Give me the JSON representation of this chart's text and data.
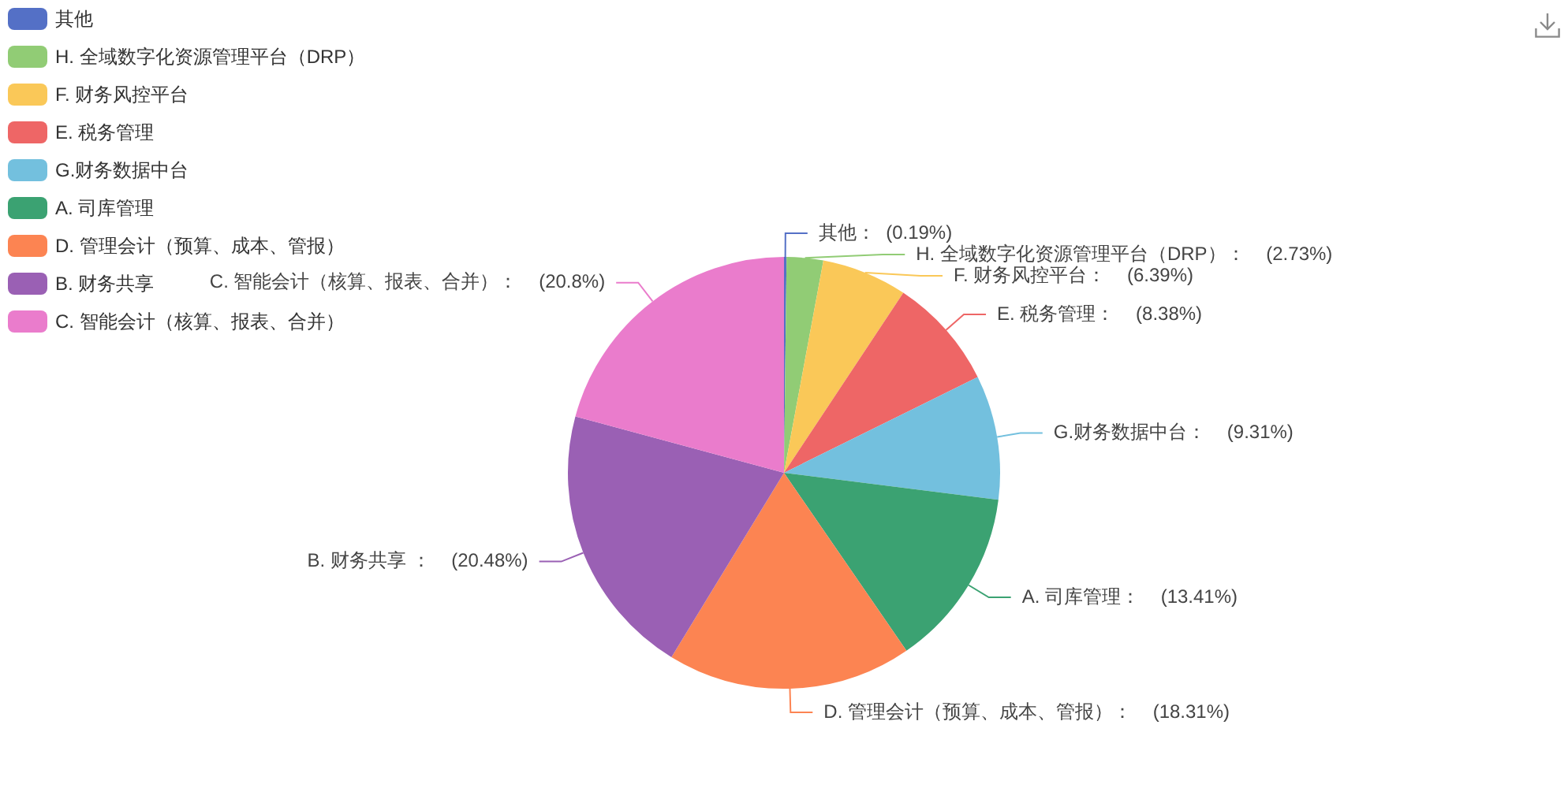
{
  "chart_data": {
    "type": "pie",
    "categories": [
      "其他",
      "H. 全域数字化资源管理平台（DRP）",
      "F. 财务风控平台",
      "E. 税务管理",
      "G.财务数据中台",
      "A. 司库管理",
      "D. 管理会计（预算、成本、管报）",
      "B. 财务共享",
      "C. 智能会计（核算、报表、合并）"
    ],
    "values": [
      0.19,
      2.73,
      6.39,
      8.38,
      9.31,
      13.41,
      18.31,
      20.48,
      20.8
    ],
    "colors": [
      "#5470c6",
      "#91cc75",
      "#fac858",
      "#ee6666",
      "#73c0de",
      "#3ba272",
      "#fc8452",
      "#9a60b4",
      "#ea7ccc"
    ],
    "value_labels": [
      "其他：  (0.19%)",
      "H. 全域数字化资源管理平台（DRP）：    (2.73%)",
      "F. 财务风控平台：    (6.39%)",
      "E. 税务管理：    (8.38%)",
      "G.财务数据中台：    (9.31%)",
      "A. 司库管理：    (13.41%)",
      "D. 管理会计（预算、成本、管报）：    (18.31%)",
      "B. 财务共享 ：    (20.48%)",
      "C. 智能会计（核算、报表、合并）：    (20.8%)"
    ],
    "legend": "top left"
  }
}
